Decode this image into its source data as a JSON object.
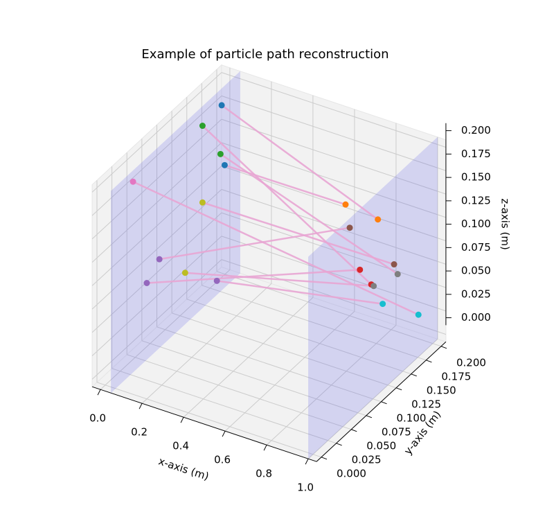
{
  "chart_data": {
    "type": "scatter3d",
    "title": "Example of particle path reconstruction",
    "xlabel": "x-axis (m)",
    "ylabel": "y-axis (m)",
    "zlabel": "z-axis (m)",
    "xlim": [
      0,
      1
    ],
    "ylim": [
      0,
      0.2
    ],
    "zlim": [
      0,
      0.2
    ],
    "xticks": [
      {
        "value": 0,
        "label": "0.0"
      },
      0.2,
      0.4,
      0.6,
      0.8,
      {
        "value": 1,
        "label": "1.0"
      }
    ],
    "yticks": [
      {
        "value": 0,
        "label": "0.000"
      },
      {
        "value": 0.025,
        "label": "0.025"
      },
      {
        "value": 0.05,
        "label": "0.050"
      },
      {
        "value": 0.075,
        "label": "0.075"
      },
      {
        "value": 0.1,
        "label": "0.100"
      },
      {
        "value": 0.125,
        "label": "0.125"
      },
      {
        "value": 0.15,
        "label": "0.150"
      },
      {
        "value": 0.175,
        "label": "0.175"
      },
      {
        "value": 0.2,
        "label": "0.200"
      }
    ],
    "zticks": [
      {
        "value": 0,
        "label": "0.000"
      },
      {
        "value": 0.025,
        "label": "0.025"
      },
      {
        "value": 0.05,
        "label": "0.050"
      },
      {
        "value": 0.075,
        "label": "0.075"
      },
      {
        "value": 0.1,
        "label": "0.100"
      },
      {
        "value": 0.125,
        "label": "0.125"
      },
      {
        "value": 0.15,
        "label": "0.150"
      },
      {
        "value": 0.175,
        "label": "0.175"
      },
      {
        "value": 0.2,
        "label": "0.200"
      }
    ],
    "grid": true,
    "planes_x": [
      0.05,
      1.0
    ],
    "plane_color": "#6464e6",
    "track_color": "#e8a5d3",
    "tracks": [
      {
        "start": {
          "x": 0.05,
          "y": 0.177,
          "z": 0.19,
          "color": "#1f77b4"
        },
        "end": {
          "x": 0.9,
          "y": 0.143,
          "z": 0.151,
          "color": "#ff7f0e"
        }
      },
      {
        "start": {
          "x": 0.05,
          "y": 0.182,
          "z": 0.123,
          "color": "#1f77b4"
        },
        "end": {
          "x": 0.9,
          "y": 0.089,
          "z": 0.199,
          "color": "#ff7f0e"
        }
      },
      {
        "start": {
          "x": 0.05,
          "y": 0.145,
          "z": 0.187,
          "color": "#2ca02c"
        },
        "end": {
          "x": 0.9,
          "y": 0.132,
          "z": 0.088,
          "color": "#d62728"
        }
      },
      {
        "start": {
          "x": 0.05,
          "y": 0.175,
          "z": 0.139,
          "color": "#2ca02c"
        },
        "end": {
          "x": 0.9,
          "y": 0.176,
          "z": 0.073,
          "color": "#7f7f7f"
        }
      },
      {
        "start": {
          "x": 0.05,
          "y": 0.029,
          "z": 0.196,
          "color": "#e377c2"
        },
        "end": {
          "x": 1.0,
          "y": 0.176,
          "z": 0.037,
          "color": "#17becf"
        }
      },
      {
        "start": {
          "x": 0.05,
          "y": 0.145,
          "z": 0.105,
          "color": "#bcbd22"
        },
        "end": {
          "x": 0.9,
          "y": 0.17,
          "z": 0.087,
          "color": "#8c564b"
        }
      },
      {
        "start": {
          "x": 0.05,
          "y": 0.073,
          "z": 0.087,
          "color": "#9467bd"
        },
        "end": {
          "x": 0.9,
          "y": 0.096,
          "z": 0.17,
          "color": "#8c564b"
        }
      },
      {
        "start": {
          "x": 0.05,
          "y": 0.052,
          "z": 0.074,
          "color": "#9467bd"
        },
        "end": {
          "x": 0.9,
          "y": 0.113,
          "z": 0.115,
          "color": "#d62728"
        }
      },
      {
        "start": {
          "x": 0.05,
          "y": 0.116,
          "z": 0.047,
          "color": "#bcbd22"
        },
        "end": {
          "x": 0.9,
          "y": 0.136,
          "z": 0.084,
          "color": "#7f7f7f"
        }
      },
      {
        "start": {
          "x": 0.05,
          "y": 0.169,
          "z": 0.007,
          "color": "#9467bd"
        },
        "end": {
          "x": 0.9,
          "y": 0.151,
          "z": 0.056,
          "color": "#17becf"
        }
      }
    ]
  }
}
